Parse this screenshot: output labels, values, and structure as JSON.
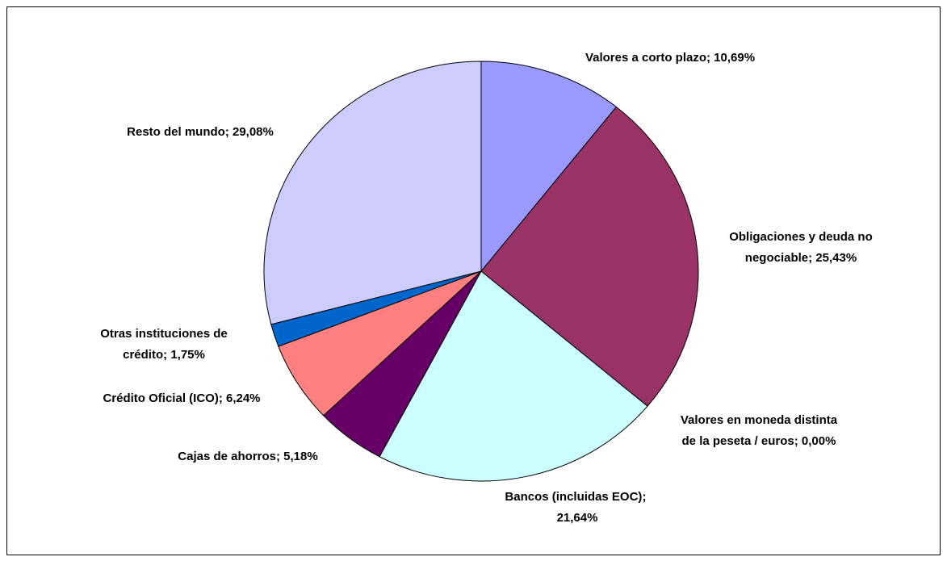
{
  "chart_data": {
    "type": "pie",
    "categories": [
      "Valores a corto plazo",
      "Obligaciones y deuda no negociable",
      "Valores en moneda distinta de la peseta / euros",
      "Bancos (incluidas EOC)",
      "Cajas de ahorros",
      "Crédito Oficial (ICO)",
      "Otras instituciones de crédito",
      "Resto del mundo"
    ],
    "values": [
      10.69,
      25.43,
      0.0,
      21.64,
      5.18,
      6.24,
      1.75,
      29.08
    ],
    "value_labels": [
      "10,69%",
      "25,43%",
      "0,00%",
      "21,64%",
      "5,18%",
      "6,24%",
      "1,75%",
      "29,08%"
    ],
    "label_separator": "; ",
    "colors": [
      "#9999FF",
      "#993366",
      "#FFFFCC",
      "#CCFFFF",
      "#660066",
      "#FF8080",
      "#0066CC",
      "#CCCCFF"
    ]
  }
}
